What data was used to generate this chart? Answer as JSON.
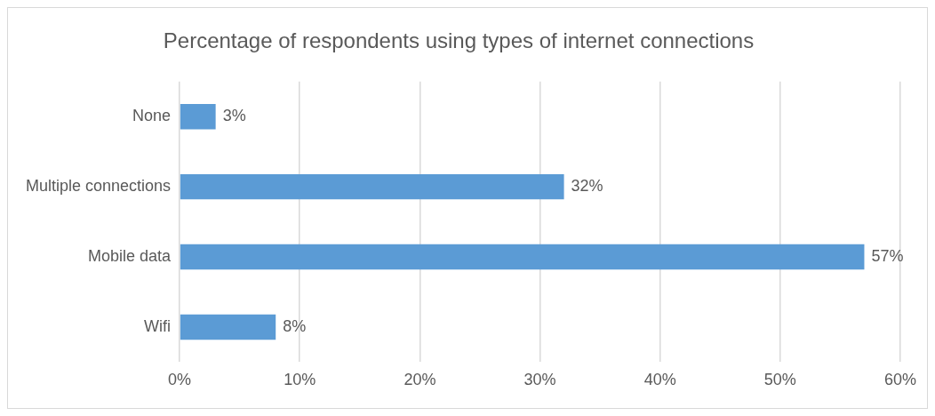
{
  "chart_data": {
    "type": "bar",
    "title": "Percentage of respondents using types of internet connections",
    "orientation": "horizontal",
    "categories": [
      "None",
      "Multiple connections",
      "Mobile data",
      "Wifi"
    ],
    "values": [
      3,
      32,
      57,
      8
    ],
    "color": "#5b9bd5",
    "value_labels": [
      "3%",
      "32%",
      "57%",
      "8%"
    ],
    "xlim": [
      0,
      60
    ],
    "xticks": [
      {
        "value": 0,
        "label": "0%"
      },
      {
        "value": 10,
        "label": "10%"
      },
      {
        "value": 20,
        "label": "20%"
      },
      {
        "value": 30,
        "label": "30%"
      },
      {
        "value": 40,
        "label": "40%"
      },
      {
        "value": 50,
        "label": "50%"
      },
      {
        "value": 60,
        "label": "60%"
      }
    ],
    "grid": "x"
  }
}
